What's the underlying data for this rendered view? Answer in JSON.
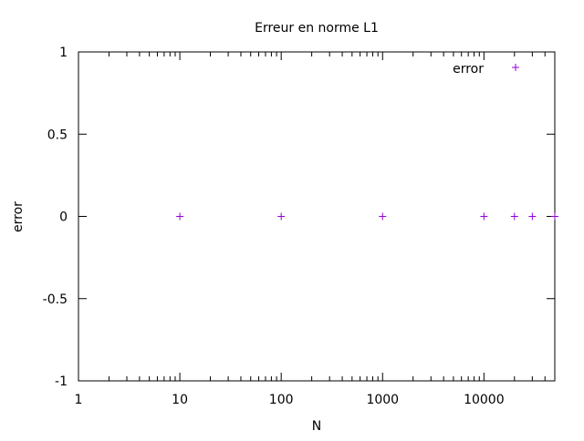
{
  "chart_data": {
    "type": "scatter",
    "title": "Erreur en norme L1",
    "xlabel": "N",
    "ylabel": "error",
    "xscale": "log",
    "yscale": "linear",
    "xlim": [
      1,
      50000
    ],
    "ylim": [
      -1,
      1
    ],
    "xticks": [
      {
        "value": 1,
        "label": "1"
      },
      {
        "value": 10,
        "label": "10"
      },
      {
        "value": 100,
        "label": "100"
      },
      {
        "value": 1000,
        "label": "1000"
      },
      {
        "value": 10000,
        "label": "10000"
      }
    ],
    "yticks": [
      {
        "value": 1,
        "label": "1"
      },
      {
        "value": 0.5,
        "label": "0.5"
      },
      {
        "value": 0,
        "label": "0"
      },
      {
        "value": -0.5,
        "label": "-0.5"
      },
      {
        "value": -1,
        "label": "-1"
      }
    ],
    "grid": false,
    "legend_position": "top-right",
    "series": [
      {
        "name": "error",
        "marker": "plus",
        "color": "#9400d3",
        "x": [
          10,
          100,
          1000,
          10000,
          20000,
          30000,
          50000
        ],
        "y": [
          0,
          0,
          0,
          0,
          0,
          0,
          0
        ]
      }
    ]
  }
}
